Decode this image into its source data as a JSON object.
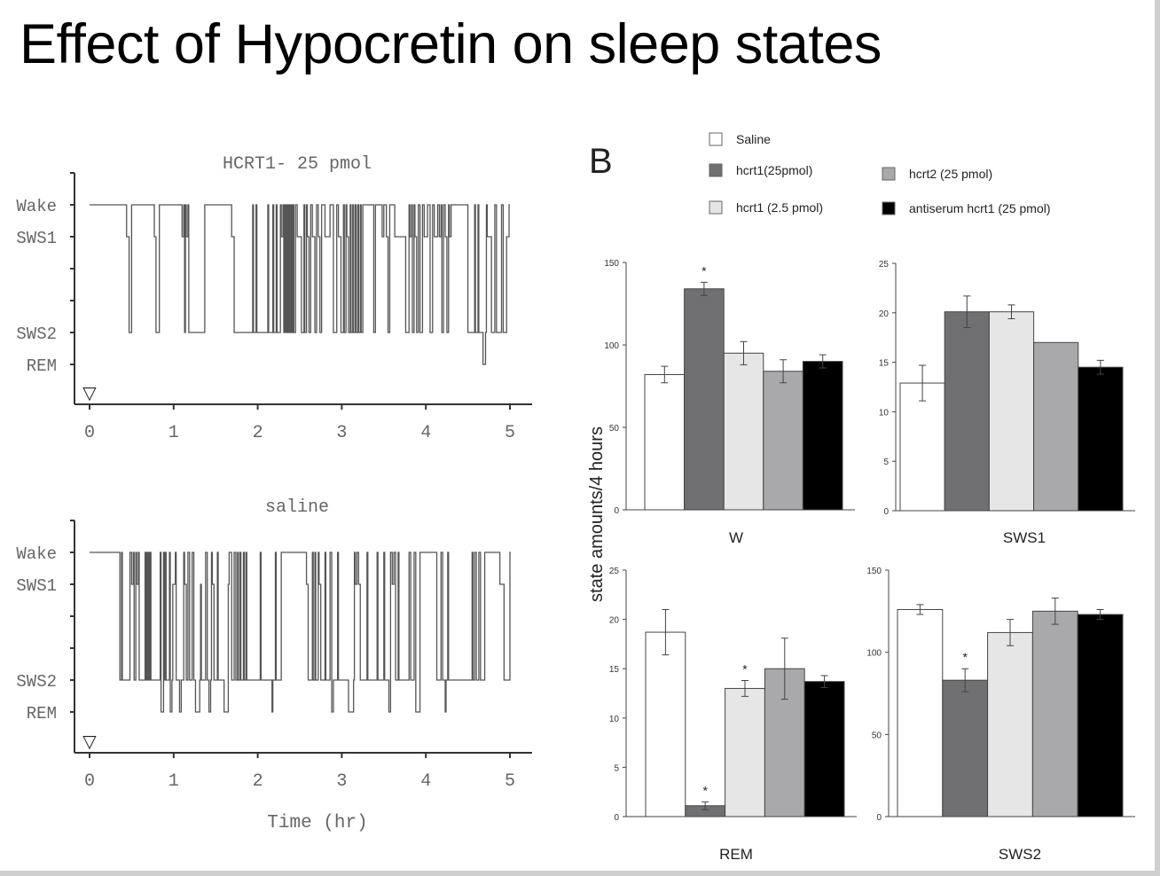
{
  "slide": {
    "title": "Effect of Hypocretin on sleep states",
    "panel_label": "B"
  },
  "legend": [
    {
      "label": "Saline",
      "color": "#ffffff"
    },
    {
      "label": "hcrt1(25pmol)",
      "color": "#707073"
    },
    {
      "label": "hcrt1 (2.5 pmol)",
      "color": "#e6e6e6"
    },
    {
      "label": "hcrt2 (25 pmol)",
      "color": "#a9a9ac"
    },
    {
      "label": "antiserum hcrt1 (25 pmol)",
      "color": "#000000"
    }
  ],
  "chart_data": [
    {
      "type": "line",
      "style": "step hypnogram",
      "title": "HCRT1- 25 pmol",
      "xlabel": "",
      "xlim": [
        0,
        5
      ],
      "xticks": [
        "0",
        "1",
        "2",
        "3",
        "4",
        "5"
      ],
      "ylevels": [
        "Wake",
        "SWS1",
        "",
        "",
        "SWS2",
        "REM"
      ],
      "injection_marker": "▽",
      "points": [
        [
          0,
          "Wake"
        ],
        [
          0.44,
          "SWS1"
        ],
        [
          0.47,
          "SWS2"
        ],
        [
          0.5,
          "Wake"
        ],
        [
          0.77,
          "SWS1"
        ],
        [
          0.79,
          "SWS2"
        ],
        [
          0.83,
          "Wake"
        ],
        [
          1.1,
          "SWS1"
        ],
        [
          1.12,
          "Wake"
        ],
        [
          1.13,
          "SWS2"
        ],
        [
          1.14,
          "Wake"
        ],
        [
          1.15,
          "SWS1"
        ],
        [
          1.17,
          "Wake"
        ],
        [
          1.18,
          "SWS2"
        ],
        [
          1.37,
          "Wake"
        ],
        [
          1.69,
          "SWS1"
        ],
        [
          1.72,
          "SWS2"
        ],
        [
          1.94,
          "Wake"
        ],
        [
          1.95,
          "SWS2"
        ],
        [
          1.98,
          "Wake"
        ],
        [
          1.99,
          "SWS2"
        ],
        [
          2.12,
          "Wake"
        ],
        [
          2.13,
          "SWS2"
        ],
        [
          2.18,
          "Wake"
        ],
        [
          2.19,
          "SWS2"
        ],
        [
          2.22,
          "Wake"
        ],
        [
          2.23,
          "SWS2"
        ],
        [
          2.27,
          "Wake"
        ],
        [
          2.28,
          "SWS1"
        ],
        [
          2.3,
          "Wake"
        ],
        [
          2.31,
          "SWS2"
        ],
        [
          2.32,
          "Wake"
        ],
        [
          2.33,
          "SWS2"
        ],
        [
          2.34,
          "Wake"
        ],
        [
          2.35,
          "SWS2"
        ],
        [
          2.36,
          "Wake"
        ],
        [
          2.37,
          "SWS2"
        ],
        [
          2.38,
          "Wake"
        ],
        [
          2.39,
          "SWS2"
        ],
        [
          2.4,
          "Wake"
        ],
        [
          2.41,
          "SWS2"
        ],
        [
          2.42,
          "Wake"
        ],
        [
          2.43,
          "SWS2"
        ],
        [
          2.45,
          "Wake"
        ],
        [
          2.47,
          "SWS1"
        ],
        [
          2.52,
          "SWS2"
        ],
        [
          2.55,
          "Wake"
        ],
        [
          2.56,
          "SWS2"
        ],
        [
          2.58,
          "Wake"
        ],
        [
          2.59,
          "SWS1"
        ],
        [
          2.61,
          "SWS2"
        ],
        [
          2.63,
          "Wake"
        ],
        [
          2.65,
          "SWS1"
        ],
        [
          2.68,
          "SWS2"
        ],
        [
          2.7,
          "Wake"
        ],
        [
          2.72,
          "SWS1"
        ],
        [
          2.74,
          "SWS2"
        ],
        [
          2.76,
          "Wake"
        ],
        [
          2.8,
          "SWS1"
        ],
        [
          2.86,
          "Wake"
        ],
        [
          2.9,
          "SWS2"
        ],
        [
          2.94,
          "Wake"
        ],
        [
          2.96,
          "SWS1"
        ],
        [
          2.99,
          "SWS2"
        ],
        [
          3.02,
          "Wake"
        ],
        [
          3.03,
          "SWS2"
        ],
        [
          3.05,
          "Wake"
        ],
        [
          3.06,
          "SWS1"
        ],
        [
          3.08,
          "SWS2"
        ],
        [
          3.1,
          "Wake"
        ],
        [
          3.11,
          "SWS2"
        ],
        [
          3.13,
          "Wake"
        ],
        [
          3.14,
          "SWS2"
        ],
        [
          3.16,
          "Wake"
        ],
        [
          3.17,
          "SWS2"
        ],
        [
          3.19,
          "Wake"
        ],
        [
          3.2,
          "SWS2"
        ],
        [
          3.22,
          "Wake"
        ],
        [
          3.23,
          "SWS2"
        ],
        [
          3.25,
          "Wake"
        ],
        [
          3.38,
          "SWS2"
        ],
        [
          3.4,
          "Wake"
        ],
        [
          3.48,
          "SWS1"
        ],
        [
          3.5,
          "Wake"
        ],
        [
          3.53,
          "SWS1"
        ],
        [
          3.55,
          "SWS2"
        ],
        [
          3.57,
          "Wake"
        ],
        [
          3.63,
          "SWS1"
        ],
        [
          3.76,
          "SWS2"
        ],
        [
          3.8,
          "Wake"
        ],
        [
          3.81,
          "SWS1"
        ],
        [
          3.83,
          "Wake"
        ],
        [
          3.84,
          "SWS2"
        ],
        [
          3.86,
          "Wake"
        ],
        [
          3.87,
          "SWS1"
        ],
        [
          3.89,
          "SWS2"
        ],
        [
          3.91,
          "Wake"
        ],
        [
          3.93,
          "SWS2"
        ],
        [
          3.96,
          "Wake"
        ],
        [
          3.98,
          "SWS1"
        ],
        [
          4.02,
          "Wake"
        ],
        [
          4.05,
          "SWS2"
        ],
        [
          4.08,
          "Wake"
        ],
        [
          4.1,
          "SWS1"
        ],
        [
          4.14,
          "Wake"
        ],
        [
          4.16,
          "SWS1"
        ],
        [
          4.18,
          "Wake"
        ],
        [
          4.19,
          "SWS2"
        ],
        [
          4.21,
          "Wake"
        ],
        [
          4.23,
          "SWS1"
        ],
        [
          4.25,
          "SWS2"
        ],
        [
          4.27,
          "Wake"
        ],
        [
          4.28,
          "SWS1"
        ],
        [
          4.3,
          "Wake"
        ],
        [
          4.5,
          "SWS2"
        ],
        [
          4.58,
          "Wake"
        ],
        [
          4.59,
          "SWS2"
        ],
        [
          4.62,
          "Wake"
        ],
        [
          4.63,
          "SWS2"
        ],
        [
          4.68,
          "REM"
        ],
        [
          4.71,
          "SWS2"
        ],
        [
          4.72,
          "Wake"
        ],
        [
          4.73,
          "SWS1"
        ],
        [
          4.78,
          "SWS2"
        ],
        [
          4.82,
          "Wake"
        ],
        [
          4.84,
          "SWS2"
        ],
        [
          4.9,
          "Wake"
        ],
        [
          4.92,
          "SWS2"
        ],
        [
          4.96,
          "SWS1"
        ],
        [
          4.99,
          "Wake"
        ]
      ]
    },
    {
      "type": "line",
      "style": "step hypnogram",
      "title": "saline",
      "xlabel": "Time (hr)",
      "xlim": [
        0,
        5
      ],
      "xticks": [
        "0",
        "1",
        "2",
        "3",
        "4",
        "5"
      ],
      "ylevels": [
        "Wake",
        "SWS1",
        "",
        "",
        "SWS2",
        "REM"
      ],
      "injection_marker": "▽",
      "points": [
        [
          0,
          "Wake"
        ],
        [
          0.36,
          "SWS2"
        ],
        [
          0.38,
          "Wake"
        ],
        [
          0.39,
          "SWS2"
        ],
        [
          0.48,
          "Wake"
        ],
        [
          0.5,
          "SWS1"
        ],
        [
          0.52,
          "Wake"
        ],
        [
          0.53,
          "SWS2"
        ],
        [
          0.55,
          "Wake"
        ],
        [
          0.56,
          "SWS1"
        ],
        [
          0.58,
          "Wake"
        ],
        [
          0.59,
          "SWS2"
        ],
        [
          0.66,
          "Wake"
        ],
        [
          0.67,
          "SWS2"
        ],
        [
          0.68,
          "Wake"
        ],
        [
          0.69,
          "SWS2"
        ],
        [
          0.7,
          "Wake"
        ],
        [
          0.71,
          "SWS2"
        ],
        [
          0.72,
          "Wake"
        ],
        [
          0.73,
          "SWS2"
        ],
        [
          0.84,
          "Wake"
        ],
        [
          0.85,
          "REM"
        ],
        [
          0.88,
          "Wake"
        ],
        [
          0.89,
          "SWS2"
        ],
        [
          0.9,
          "Wake"
        ],
        [
          0.91,
          "SWS2"
        ],
        [
          0.95,
          "Wake"
        ],
        [
          0.96,
          "REM"
        ],
        [
          0.98,
          "SWS2"
        ],
        [
          0.99,
          "SWS1"
        ],
        [
          1.02,
          "Wake"
        ],
        [
          1.03,
          "SWS2"
        ],
        [
          1.07,
          "REM"
        ],
        [
          1.09,
          "SWS2"
        ],
        [
          1.12,
          "Wake"
        ],
        [
          1.13,
          "SWS1"
        ],
        [
          1.15,
          "SWS2"
        ],
        [
          1.17,
          "Wake"
        ],
        [
          1.19,
          "SWS2"
        ],
        [
          1.22,
          "Wake"
        ],
        [
          1.24,
          "SWS2"
        ],
        [
          1.26,
          "REM"
        ],
        [
          1.31,
          "SWS2"
        ],
        [
          1.32,
          "SWS1"
        ],
        [
          1.33,
          "SWS2"
        ],
        [
          1.38,
          "Wake"
        ],
        [
          1.4,
          "SWS2"
        ],
        [
          1.42,
          "REM"
        ],
        [
          1.44,
          "SWS2"
        ],
        [
          1.45,
          "Wake"
        ],
        [
          1.46,
          "SWS1"
        ],
        [
          1.48,
          "SWS2"
        ],
        [
          1.52,
          "Wake"
        ],
        [
          1.53,
          "SWS2"
        ],
        [
          1.6,
          "REM"
        ],
        [
          1.65,
          "SWS1"
        ],
        [
          1.66,
          "Wake"
        ],
        [
          1.69,
          "SWS2"
        ],
        [
          1.72,
          "Wake"
        ],
        [
          1.74,
          "SWS2"
        ],
        [
          1.76,
          "Wake"
        ],
        [
          1.77,
          "SWS2"
        ],
        [
          1.79,
          "Wake"
        ],
        [
          1.8,
          "SWS2"
        ],
        [
          1.83,
          "Wake"
        ],
        [
          1.84,
          "SWS2"
        ],
        [
          1.86,
          "Wake"
        ],
        [
          1.87,
          "SWS2"
        ],
        [
          2.03,
          "Wake"
        ],
        [
          2.04,
          "SWS2"
        ],
        [
          2.17,
          "REM"
        ],
        [
          2.18,
          "SWS2"
        ],
        [
          2.21,
          "Wake"
        ],
        [
          2.22,
          "SWS2"
        ],
        [
          2.28,
          "Wake"
        ],
        [
          2.58,
          "SWS1"
        ],
        [
          2.6,
          "SWS2"
        ],
        [
          2.65,
          "Wake"
        ],
        [
          2.66,
          "SWS2"
        ],
        [
          2.68,
          "Wake"
        ],
        [
          2.69,
          "SWS2"
        ],
        [
          2.72,
          "Wake"
        ],
        [
          2.73,
          "SWS1"
        ],
        [
          2.75,
          "SWS2"
        ],
        [
          2.8,
          "Wake"
        ],
        [
          2.81,
          "SWS2"
        ],
        [
          2.86,
          "Wake"
        ],
        [
          2.88,
          "REM"
        ],
        [
          2.9,
          "SWS2"
        ],
        [
          2.95,
          "Wake"
        ],
        [
          2.96,
          "SWS2"
        ],
        [
          3.08,
          "REM"
        ],
        [
          3.14,
          "SWS2"
        ],
        [
          3.15,
          "Wake"
        ],
        [
          3.16,
          "SWS1"
        ],
        [
          3.18,
          "Wake"
        ],
        [
          3.2,
          "SWS1"
        ],
        [
          3.22,
          "SWS2"
        ],
        [
          3.3,
          "Wake"
        ],
        [
          3.31,
          "SWS2"
        ],
        [
          3.42,
          "Wake"
        ],
        [
          3.43,
          "SWS2"
        ],
        [
          3.5,
          "Wake"
        ],
        [
          3.51,
          "SWS2"
        ],
        [
          3.56,
          "REM"
        ],
        [
          3.58,
          "Wake"
        ],
        [
          3.6,
          "SWS1"
        ],
        [
          3.62,
          "Wake"
        ],
        [
          3.64,
          "SWS2"
        ],
        [
          3.67,
          "Wake"
        ],
        [
          3.68,
          "SWS2"
        ],
        [
          3.8,
          "Wake"
        ],
        [
          3.82,
          "SWS2"
        ],
        [
          3.86,
          "Wake"
        ],
        [
          3.88,
          "REM"
        ],
        [
          3.93,
          "Wake"
        ],
        [
          4.13,
          "SWS2"
        ],
        [
          4.18,
          "Wake"
        ],
        [
          4.2,
          "SWS2"
        ],
        [
          4.23,
          "REM"
        ],
        [
          4.24,
          "SWS2"
        ],
        [
          4.26,
          "Wake"
        ],
        [
          4.27,
          "SWS2"
        ],
        [
          4.55,
          "Wake"
        ],
        [
          4.56,
          "SWS2"
        ],
        [
          4.58,
          "Wake"
        ],
        [
          4.6,
          "SWS2"
        ],
        [
          4.63,
          "Wake"
        ],
        [
          4.65,
          "SWS2"
        ],
        [
          4.7,
          "Wake"
        ],
        [
          4.88,
          "SWS1"
        ],
        [
          4.93,
          "SWS2"
        ],
        [
          5.0,
          "Wake"
        ]
      ]
    },
    {
      "type": "bar",
      "title": "",
      "xlabel": "W",
      "ylabel": "state amounts/4 hours",
      "ylim": [
        0,
        150
      ],
      "yticks": [
        "0",
        "50",
        "100",
        "150"
      ],
      "categories": [
        "Saline",
        "hcrt1(25pmol)",
        "hcrt1 (2.5 pmol)",
        "hcrt2 (25 pmol)",
        "antiserum hcrt1 (25 pmol)"
      ],
      "values": [
        82,
        134,
        95,
        84,
        90
      ],
      "errors": [
        5,
        4,
        7,
        7,
        4
      ],
      "significant": [
        false,
        true,
        false,
        false,
        false
      ]
    },
    {
      "type": "bar",
      "title": "",
      "xlabel": "SWS1",
      "ylabel": "state amounts/4 hours",
      "ylim": [
        0,
        25
      ],
      "yticks": [
        "0",
        "5",
        "10",
        "15",
        "20",
        "25"
      ],
      "categories": [
        "Saline",
        "hcrt1(25pmol)",
        "hcrt1 (2.5 pmol)",
        "hcrt2 (25 pmol)",
        "antiserum hcrt1 (25 pmol)"
      ],
      "values": [
        12.9,
        20.1,
        20.1,
        17,
        14.5
      ],
      "errors": [
        1.8,
        1.6,
        0.7,
        0,
        0.7
      ],
      "significant": [
        false,
        false,
        false,
        false,
        false
      ]
    },
    {
      "type": "bar",
      "title": "",
      "xlabel": "REM",
      "ylabel": "state amounts/4 hours",
      "ylim": [
        0,
        25
      ],
      "yticks": [
        "0",
        "5",
        "10",
        "15",
        "20",
        "25"
      ],
      "categories": [
        "Saline",
        "hcrt1(25pmol)",
        "hcrt1 (2.5 pmol)",
        "hcrt2 (25 pmol)",
        "antiserum hcrt1 (25 pmol)"
      ],
      "values": [
        18.7,
        1.1,
        13,
        15,
        13.7
      ],
      "errors": [
        2.3,
        0.4,
        0.8,
        3.1,
        0.6
      ],
      "significant": [
        false,
        true,
        true,
        false,
        false
      ]
    },
    {
      "type": "bar",
      "title": "",
      "xlabel": "SWS2",
      "ylabel": "state amounts/4 hours",
      "ylim": [
        0,
        150
      ],
      "yticks": [
        "0",
        "50",
        "100",
        "150"
      ],
      "categories": [
        "Saline",
        "hcrt1(25pmol)",
        "hcrt1 (2.5 pmol)",
        "hcrt2 (25 pmol)",
        "antiserum hcrt1 (25 pmol)"
      ],
      "values": [
        126,
        83,
        112,
        125,
        123
      ],
      "errors": [
        3,
        7,
        8,
        8,
        3
      ],
      "significant": [
        false,
        true,
        false,
        false,
        false
      ]
    }
  ]
}
